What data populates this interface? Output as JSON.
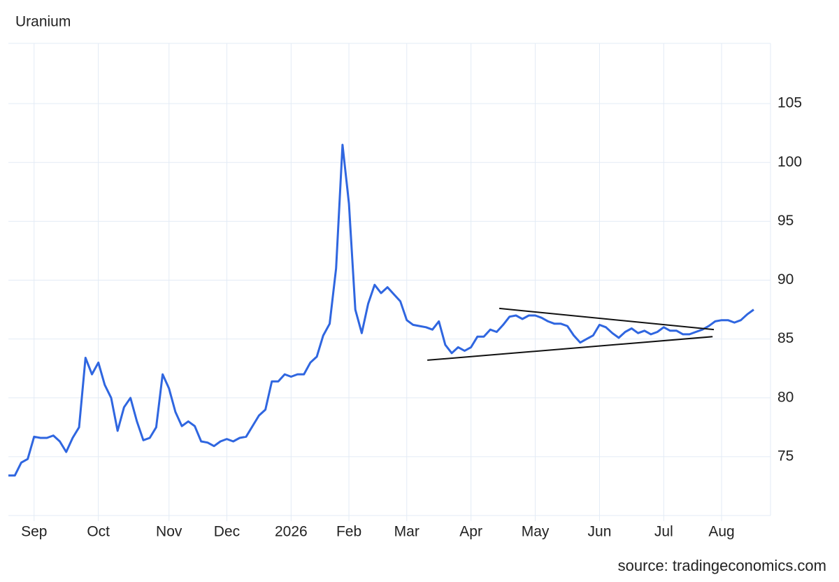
{
  "chart_data": {
    "type": "line",
    "title": "Uranium",
    "source": "source: tradingeconomics.com",
    "color": "#2f66e0",
    "categories": [
      null,
      null,
      null,
      null,
      "Sep",
      null,
      null,
      null,
      null,
      null,
      null,
      null,
      null,
      null,
      "Oct",
      null,
      null,
      null,
      null,
      null,
      null,
      null,
      null,
      null,
      null,
      "Nov",
      null,
      null,
      null,
      null,
      null,
      null,
      null,
      null,
      "Dec",
      null,
      null,
      null,
      null,
      null,
      null,
      null,
      null,
      null,
      "2026",
      null,
      null,
      null,
      null,
      null,
      null,
      null,
      null,
      "Feb",
      null,
      null,
      null,
      null,
      null,
      null,
      null,
      null,
      "Mar",
      null,
      null,
      null,
      null,
      null,
      null,
      null,
      null,
      null,
      "Apr",
      null,
      null,
      null,
      null,
      null,
      null,
      null,
      null,
      null,
      "May",
      null,
      null,
      null,
      null,
      null,
      null,
      null,
      null,
      null,
      "Jun",
      null,
      null,
      null,
      null,
      null,
      null,
      null,
      null,
      null,
      "Jul",
      null,
      null,
      null,
      null,
      null,
      null,
      null,
      null,
      "Aug",
      null,
      null,
      null,
      null,
      null
    ],
    "values": [
      73.4,
      73.4,
      74.5,
      74.8,
      76.7,
      76.6,
      76.6,
      76.8,
      76.3,
      75.4,
      76.6,
      77.5,
      83.4,
      82.0,
      83.0,
      81.1,
      80.0,
      77.2,
      79.2,
      80.0,
      78.0,
      76.4,
      76.6,
      77.5,
      82.0,
      80.8,
      78.8,
      77.6,
      78.0,
      77.6,
      76.3,
      76.2,
      75.9,
      76.3,
      76.5,
      76.3,
      76.6,
      76.7,
      77.6,
      78.5,
      79.0,
      81.4,
      81.4,
      82.0,
      81.8,
      82.0,
      82.0,
      83.0,
      83.5,
      85.3,
      86.3,
      91.0,
      101.5,
      96.5,
      87.5,
      85.5,
      88.0,
      89.6,
      88.9,
      89.4,
      88.8,
      88.2,
      86.6,
      86.2,
      86.1,
      86.0,
      85.8,
      86.5,
      84.5,
      83.8,
      84.3,
      84.0,
      84.3,
      85.2,
      85.2,
      85.8,
      85.6,
      86.2,
      86.9,
      87.0,
      86.7,
      87.0,
      87.0,
      86.8,
      86.5,
      86.3,
      86.3,
      86.1,
      85.3,
      84.7,
      85.0,
      85.3,
      86.2,
      86.0,
      85.5,
      85.1,
      85.6,
      85.9,
      85.5,
      85.7,
      85.4,
      85.6,
      86.0,
      85.7,
      85.7,
      85.4,
      85.4,
      85.6,
      85.8,
      86.1,
      86.5,
      86.6,
      86.6,
      86.4,
      86.6,
      87.1,
      87.5
    ],
    "trendlines": [
      {
        "color": "#111111",
        "x": [
          76.4,
          109.8
        ],
        "values": [
          87.6,
          85.8
        ]
      },
      {
        "color": "#111111",
        "x": [
          65.2,
          109.6
        ],
        "values": [
          83.2,
          85.2
        ]
      }
    ],
    "ylim": [
      70,
      110
    ],
    "yticks": [
      75,
      80,
      85,
      90,
      95,
      100,
      105
    ],
    "grid": true
  }
}
